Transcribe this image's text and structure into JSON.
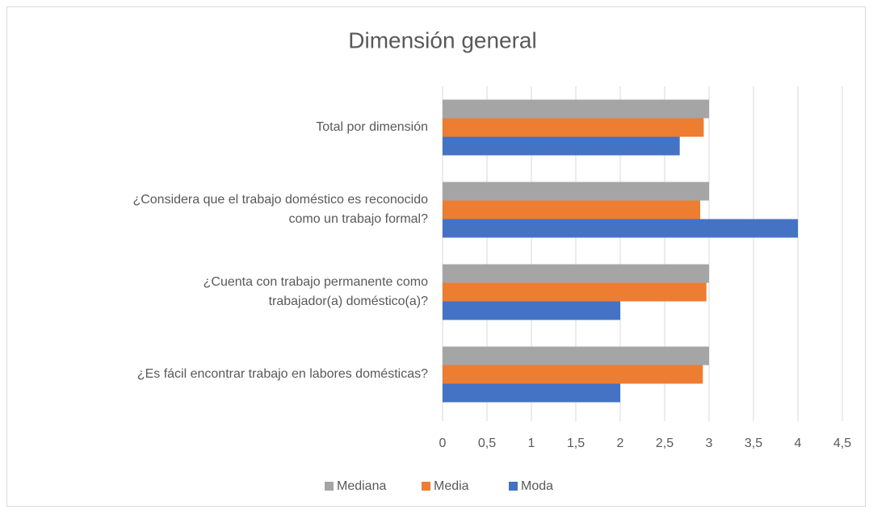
{
  "chart_data": {
    "type": "barh",
    "title": "Dimensión general",
    "categories": [
      "Total por dimensión",
      "¿Considera que el trabajo doméstico es reconocido\ncomo un trabajo formal?",
      "¿Cuenta con trabajo permanente como\ntrabajador(a) doméstico(a)?",
      "¿Es fácil encontrar trabajo en labores domésticas?"
    ],
    "series": [
      {
        "name": "Mediana",
        "color": "#a5a5a5",
        "values": [
          3,
          3,
          3,
          3
        ]
      },
      {
        "name": "Media",
        "color": "#ed7d31",
        "values": [
          2.94,
          2.9,
          2.97,
          2.93
        ]
      },
      {
        "name": "Moda",
        "color": "#4472c4",
        "values": [
          2.67,
          4,
          2,
          2
        ]
      }
    ],
    "xlim": [
      0,
      4.5
    ],
    "xticks": [
      0,
      {
        "value": 0.5,
        "label": "0,5"
      },
      1,
      {
        "value": 1.5,
        "label": "1,5"
      },
      2,
      {
        "value": 2.5,
        "label": "2,5"
      },
      3,
      {
        "value": 3.5,
        "label": "3,5"
      },
      4,
      {
        "value": 4.5,
        "label": "4,5"
      }
    ],
    "grid": true,
    "legend": "bottom"
  }
}
